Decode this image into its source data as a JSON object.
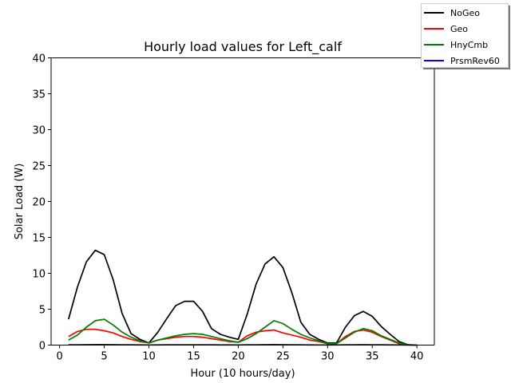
{
  "chart_data": {
    "type": "line",
    "title": "Hourly load values for Left_calf",
    "xlabel": "Hour (10 hours/day)",
    "ylabel": "Solar Load (W)",
    "xlim": [
      -0.95,
      41.95
    ],
    "ylim": [
      0,
      40
    ],
    "xticks": [
      0,
      5,
      10,
      15,
      20,
      25,
      30,
      35,
      40
    ],
    "yticks": [
      0,
      5,
      10,
      15,
      20,
      25,
      30,
      35,
      40
    ],
    "grid": false,
    "legend_position": "top-right (outside axes)",
    "x": [
      1,
      2,
      3,
      4,
      5,
      6,
      7,
      8,
      9,
      10,
      11,
      12,
      13,
      14,
      15,
      16,
      17,
      18,
      19,
      20,
      21,
      22,
      23,
      24,
      25,
      26,
      27,
      28,
      29,
      30,
      31,
      32,
      33,
      34,
      35,
      36,
      37,
      38,
      39,
      40
    ],
    "series": [
      {
        "name": "NoGeo",
        "color": "#000000",
        "values": [
          3.6,
          8.1,
          11.6,
          13.2,
          12.6,
          9.1,
          4.4,
          1.6,
          0.8,
          0.3,
          1.8,
          3.7,
          5.5,
          6.1,
          6.1,
          4.7,
          2.3,
          1.5,
          1.1,
          0.8,
          4.3,
          8.5,
          11.3,
          12.3,
          10.8,
          7.3,
          3.2,
          1.5,
          0.8,
          0.3,
          0.3,
          2.5,
          4.1,
          4.7,
          4.0,
          2.6,
          1.5,
          0.5,
          0.05,
          0.0
        ]
      },
      {
        "name": "Geo",
        "color": "#ff0000",
        "values": [
          1.2,
          1.9,
          2.2,
          2.2,
          2.0,
          1.7,
          1.2,
          0.8,
          0.5,
          0.3,
          0.7,
          0.9,
          1.1,
          1.2,
          1.2,
          1.1,
          0.9,
          0.7,
          0.5,
          0.4,
          1.3,
          1.8,
          2.0,
          2.1,
          1.7,
          1.4,
          1.1,
          0.7,
          0.5,
          0.2,
          0.2,
          1.2,
          1.9,
          2.1,
          1.8,
          1.2,
          0.7,
          0.2,
          0.05,
          0.0
        ]
      },
      {
        "name": "HnyCmb",
        "color": "#008000",
        "values": [
          0.7,
          1.4,
          2.5,
          3.4,
          3.6,
          2.8,
          1.8,
          1.1,
          0.6,
          0.3,
          0.7,
          1.0,
          1.3,
          1.5,
          1.6,
          1.5,
          1.2,
          0.9,
          0.6,
          0.4,
          0.9,
          1.6,
          2.5,
          3.4,
          3.0,
          2.2,
          1.5,
          1.0,
          0.6,
          0.2,
          0.2,
          1.0,
          1.8,
          2.3,
          2.0,
          1.3,
          0.8,
          0.3,
          0.05,
          0.0
        ]
      },
      {
        "name": "PrsmRev60",
        "color": "#0000ff",
        "values": [
          0.05,
          0.05,
          0.06,
          0.07,
          0.07,
          0.06,
          0.05,
          0.04,
          0.03,
          0.02,
          0.03,
          0.04,
          0.05,
          0.05,
          0.05,
          0.05,
          0.04,
          0.03,
          0.03,
          0.02,
          0.04,
          0.05,
          0.06,
          0.07,
          0.06,
          0.05,
          0.04,
          0.03,
          0.02,
          0.02,
          0.02,
          0.04,
          0.05,
          0.06,
          0.05,
          0.04,
          0.03,
          0.02,
          0.01,
          0.0
        ]
      }
    ]
  }
}
